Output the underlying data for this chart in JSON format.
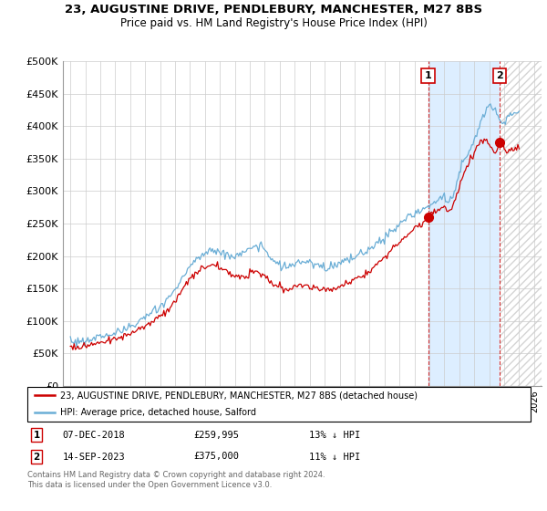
{
  "title": "23, AUGUSTINE DRIVE, PENDLEBURY, MANCHESTER, M27 8BS",
  "subtitle": "Price paid vs. HM Land Registry's House Price Index (HPI)",
  "ylim": [
    0,
    500000
  ],
  "yticks": [
    0,
    50000,
    100000,
    150000,
    200000,
    250000,
    300000,
    350000,
    400000,
    450000,
    500000
  ],
  "ytick_labels": [
    "£0",
    "£50K",
    "£100K",
    "£150K",
    "£200K",
    "£250K",
    "£300K",
    "£350K",
    "£400K",
    "£450K",
    "£500K"
  ],
  "hpi_color": "#6baed6",
  "price_color": "#cc0000",
  "sale1_year": 2018.92,
  "sale1_price": 259995,
  "sale2_year": 2023.71,
  "sale2_price": 375000,
  "legend_line1": "23, AUGUSTINE DRIVE, PENDLEBURY, MANCHESTER, M27 8BS (detached house)",
  "legend_line2": "HPI: Average price, detached house, Salford",
  "footer": "Contains HM Land Registry data © Crown copyright and database right 2024.\nThis data is licensed under the Open Government Licence v3.0.",
  "background_color": "#ffffff",
  "grid_color": "#cccccc",
  "shade_color": "#ddeeff",
  "xlim_left": 1994.5,
  "xlim_right": 2026.5
}
